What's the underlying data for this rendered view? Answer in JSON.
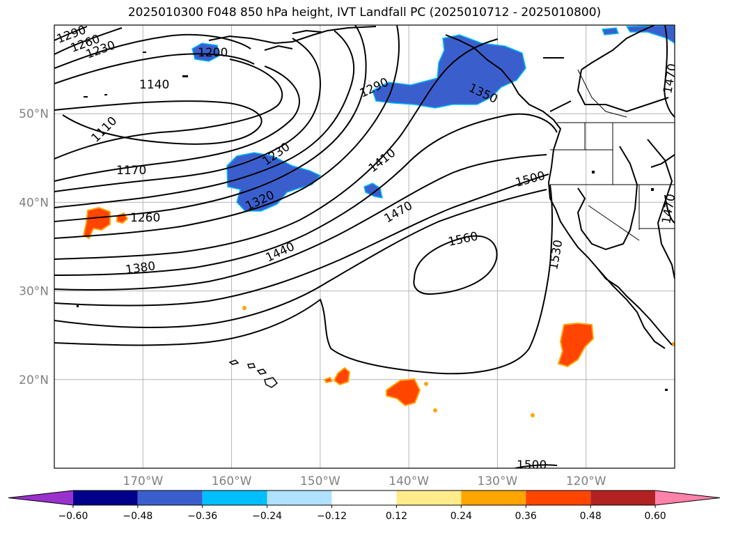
{
  "title": "2025010300 F048 850 hPa height, IVT Landfall PC (2025010712 - 2025010800)",
  "lat_labels": [
    {
      "text": "50°N",
      "lat": 50
    },
    {
      "text": "40°N",
      "lat": 40
    },
    {
      "text": "30°N",
      "lat": 30
    },
    {
      "text": "20°N",
      "lat": 20
    }
  ],
  "lon_labels": [
    {
      "text": "170°W",
      "lon": -170
    },
    {
      "text": "160°W",
      "lon": -160
    },
    {
      "text": "150°W",
      "lon": -150
    },
    {
      "text": "140°W",
      "lon": -140
    },
    {
      "text": "130°W",
      "lon": -130
    },
    {
      "text": "120°W",
      "lon": -120
    }
  ],
  "contour_labels": [
    "1290",
    "1260",
    "1230",
    "1200",
    "1140",
    "1110",
    "1170",
    "1230",
    "1320",
    "1260",
    "1380",
    "1290",
    "1350",
    "1410",
    "1470",
    "1440",
    "1500",
    "1560",
    "1530",
    "1470",
    "1470",
    "1500"
  ],
  "colorbar": {
    "ticks": [
      "−0.60",
      "−0.48",
      "−0.36",
      "−0.24",
      "−0.12",
      "0.12",
      "0.24",
      "0.36",
      "0.48",
      "0.60"
    ],
    "colors": [
      "#9932cc",
      "#00008b",
      "#3a5fcd",
      "#00bfff",
      "#b0e2ff",
      "#ffffff",
      "#ffec8b",
      "#ffa500",
      "#ff4500",
      "#b22222",
      "#ff82ab"
    ]
  }
}
